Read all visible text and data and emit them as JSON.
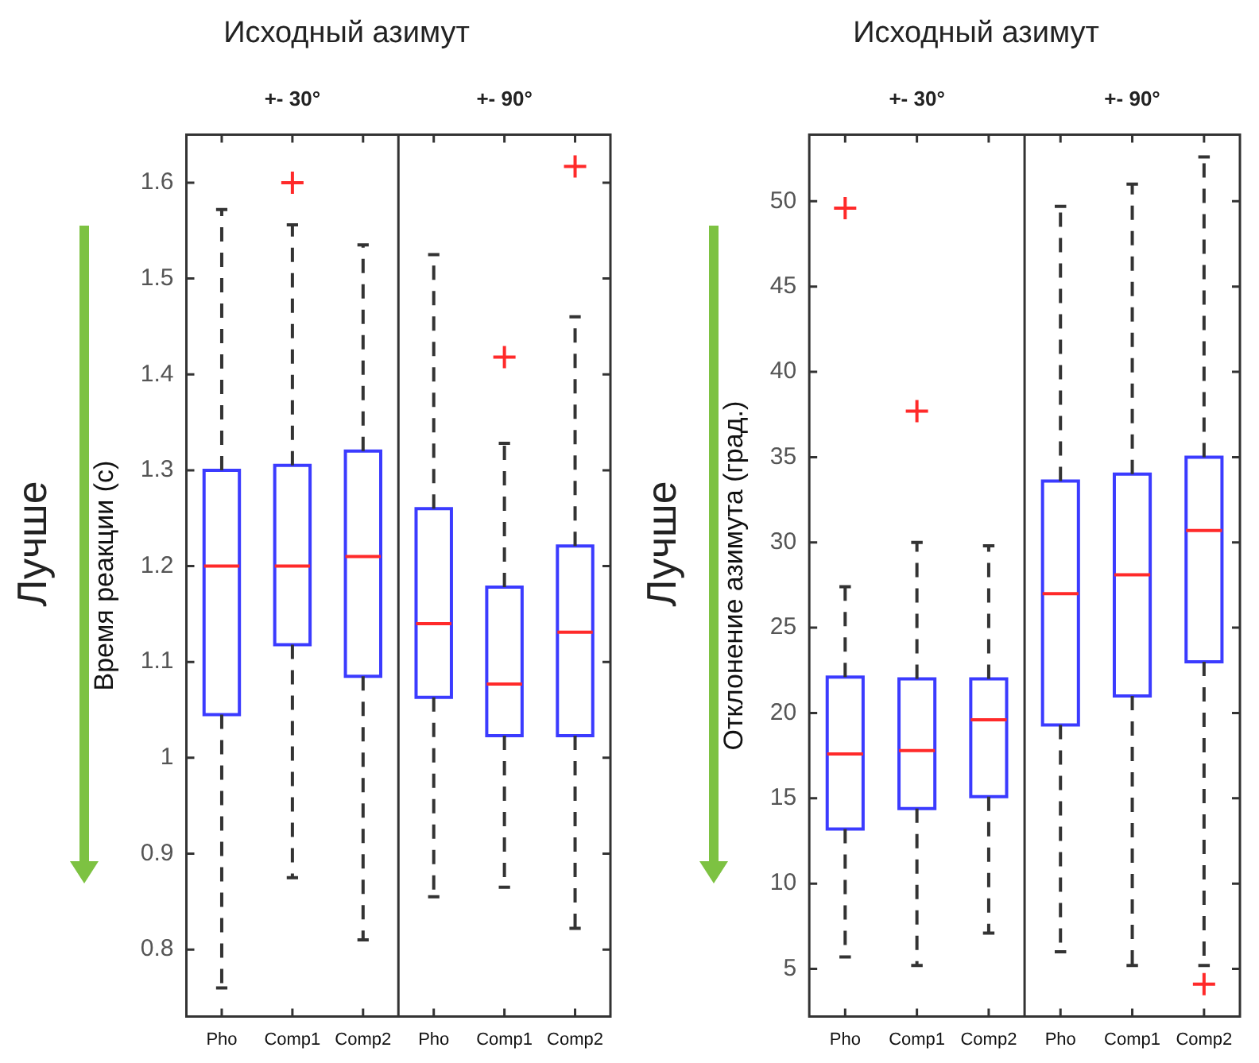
{
  "chart_data": [
    {
      "type": "box",
      "title": "Исходный азимут",
      "ylabel": "Время реакции (с)",
      "categories": [
        "Pho",
        "Comp1",
        "Comp2",
        "Pho",
        "Comp1",
        "Comp2"
      ],
      "series": [
        {
          "color": "#3b3bff",
          "boxes": [
            {
              "low": 0.76,
              "q1": 1.045,
              "median": 1.2,
              "q3": 1.3,
              "high": 1.572
            },
            {
              "low": 0.875,
              "q1": 1.118,
              "median": 1.2,
              "q3": 1.305,
              "high": 1.556,
              "outliers": [
                1.6
              ]
            },
            {
              "low": 0.81,
              "q1": 1.085,
              "median": 1.21,
              "q3": 1.32,
              "high": 1.535
            },
            {
              "low": 0.855,
              "q1": 1.063,
              "median": 1.14,
              "q3": 1.26,
              "high": 1.525
            },
            {
              "low": 0.865,
              "q1": 1.023,
              "median": 1.077,
              "q3": 1.178,
              "high": 1.328,
              "outliers": [
                1.418
              ]
            },
            {
              "low": 0.822,
              "q1": 1.023,
              "median": 1.131,
              "q3": 1.221,
              "high": 1.46,
              "outliers": [
                1.617
              ]
            }
          ]
        }
      ],
      "ylim": [
        0.73,
        1.65
      ],
      "yticks": [
        0.8,
        0.9,
        1,
        1.1,
        1.2,
        1.3,
        1.4,
        1.5,
        1.6
      ],
      "grid": false,
      "annotations": [
        "+- 30°",
        "+- 90°",
        "Лучше"
      ]
    },
    {
      "type": "box",
      "title": "Исходный азимут",
      "ylabel": "Отклонение азимута (град.)",
      "categories": [
        "Pho",
        "Comp1",
        "Comp2",
        "Pho",
        "Comp1",
        "Comp2"
      ],
      "series": [
        {
          "color": "#3b3bff",
          "boxes": [
            {
              "low": 5.7,
              "q1": 13.2,
              "median": 17.6,
              "q3": 22.1,
              "high": 27.4,
              "outliers": [
                49.6
              ]
            },
            {
              "low": 5.2,
              "q1": 14.4,
              "median": 17.8,
              "q3": 22,
              "high": 30,
              "outliers": [
                37.7
              ]
            },
            {
              "low": 7.1,
              "q1": 15.1,
              "median": 19.6,
              "q3": 22,
              "high": 29.8
            },
            {
              "low": 6,
              "q1": 19.3,
              "median": 27,
              "q3": 33.6,
              "high": 49.7
            },
            {
              "low": 5.2,
              "q1": 21,
              "median": 28.1,
              "q3": 34,
              "high": 51
            },
            {
              "low": 5.2,
              "q1": 23,
              "median": 30.7,
              "q3": 35,
              "high": 52.6,
              "outliers": [
                4.1
              ]
            }
          ]
        }
      ],
      "ylim": [
        2.2,
        53.9
      ],
      "yticks": [
        5,
        10,
        15,
        20,
        25,
        30,
        35,
        40,
        45,
        50
      ],
      "grid": false,
      "annotations": [
        "+- 30°",
        "+- 90°",
        "Лучше"
      ]
    }
  ]
}
